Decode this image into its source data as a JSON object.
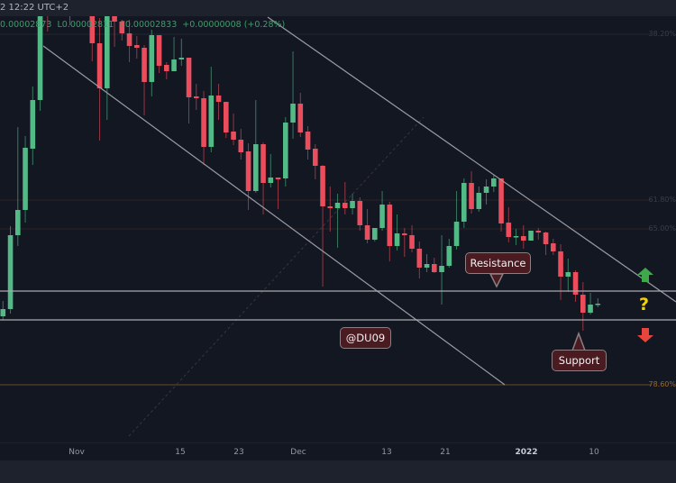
{
  "header": {
    "time": "2 12:22 UTC+2",
    "ohlc_text": "0.00002873  L0.00002811  C0.00002833  +0.00000008 (+0.28%)"
  },
  "colors": {
    "up": "#53b987",
    "down": "#eb4d5c",
    "background": "#131722",
    "line": "#9a9ca3",
    "fib_orange": "#9a6a2a"
  },
  "fib_levels": [
    {
      "label": "38.20%"
    },
    {
      "label": "61.80%"
    },
    {
      "label": "65.00%"
    },
    {
      "label": "78.60%"
    }
  ],
  "annotations": {
    "resistance": "Resistance",
    "support": "Support",
    "watermark": "@DU09",
    "up_icon": "arrow-up",
    "question_icon": "question-mark",
    "down_icon": "arrow-down"
  },
  "chart_data": {
    "type": "candlestick",
    "x_tick_labels": [
      "Nov",
      "15",
      "23",
      "Dec",
      "13",
      "21",
      "2022",
      "10"
    ],
    "ylim": [
      2.755e-05,
      2.99e-05
    ],
    "grid": false,
    "candles": [
      [
        2.8245e-05,
        2.833e-05,
        2.8225e-05,
        2.8285e-05
      ],
      [
        2.8285e-05,
        2.8745e-05,
        2.826e-05,
        2.8695e-05
      ],
      [
        2.8695e-05,
        2.9295e-05,
        2.8635e-05,
        2.8835e-05
      ],
      [
        2.8835e-05,
        2.9245e-05,
        2.8765e-05,
        2.918e-05
      ],
      [
        2.9175e-05,
        2.952e-05,
        2.9085e-05,
        2.9445e-05
      ],
      [
        2.9445e-05,
        3.01e-05,
        2.9385e-05,
        3.005e-05
      ],
      [
        3.005e-05,
        3.01e-05,
        2.9825e-05,
        2.995e-05
      ],
      [
        2.995e-05,
        3.015e-05,
        2.9925e-05,
        3.01e-05
      ],
      [
        3.01e-05,
        3.0125e-05,
        2.9975e-05,
        3e-05
      ],
      [
        3e-05,
        3.01e-05,
        2.986e-05,
        3.0075e-05
      ],
      [
        3.0075e-05,
        3.0125e-05,
        2.995e-05,
        2.9975e-05
      ],
      [
        2.9975e-05,
        3.0075e-05,
        2.994e-05,
        3.004e-05
      ],
      [
        3.004e-05,
        3.005e-05,
        2.966e-05,
        2.976e-05
      ],
      [
        2.976e-05,
        2.99e-05,
        2.922e-05,
        2.951e-05
      ],
      [
        2.951e-05,
        3e-05,
        2.9335e-05,
        2.995e-05
      ],
      [
        2.9925e-05,
        2.995e-05,
        2.974e-05,
        2.988e-05
      ],
      [
        2.988e-05,
        2.989e-05,
        2.9775e-05,
        2.9815e-05
      ],
      [
        2.9815e-05,
        2.989e-05,
        2.9655e-05,
        2.9745e-05
      ],
      [
        2.975e-05,
        2.98e-05,
        2.9675e-05,
        2.9735e-05
      ],
      [
        2.9735e-05,
        2.975e-05,
        2.936e-05,
        2.9545e-05
      ],
      [
        2.9545e-05,
        2.9835e-05,
        2.9465e-05,
        2.9805e-05
      ],
      [
        2.9805e-05,
        2.9805e-05,
        2.9595e-05,
        2.9635e-05
      ],
      [
        2.964e-05,
        2.9655e-05,
        2.956e-05,
        2.9605e-05
      ],
      [
        2.9605e-05,
        2.9795e-05,
        2.9605e-05,
        2.967e-05
      ],
      [
        2.967e-05,
        2.9785e-05,
        2.9635e-05,
        2.968e-05
      ],
      [
        2.968e-05,
        2.968e-05,
        2.9315e-05,
        2.946e-05
      ],
      [
        2.9465e-05,
        2.9535e-05,
        2.939e-05,
        2.9455e-05
      ],
      [
        2.9455e-05,
        2.9495e-05,
        2.9085e-05,
        2.9185e-05
      ],
      [
        2.9185e-05,
        2.963e-05,
        2.9155e-05,
        2.947e-05
      ],
      [
        2.947e-05,
        2.9535e-05,
        2.9335e-05,
        2.9435e-05
      ],
      [
        2.9435e-05,
        2.9435e-05,
        2.9235e-05,
        2.9265e-05
      ],
      [
        2.927e-05,
        2.937e-05,
        2.9195e-05,
        2.9225e-05
      ],
      [
        2.9225e-05,
        2.9285e-05,
        2.9115e-05,
        2.9155e-05
      ],
      [
        2.916e-05,
        2.9205e-05,
        2.8835e-05,
        2.894e-05
      ],
      [
        2.894e-05,
        2.9445e-05,
        2.893e-05,
        2.92e-05
      ],
      [
        2.92e-05,
        2.921e-05,
        2.881e-05,
        2.8985e-05
      ],
      [
        2.8985e-05,
        2.9145e-05,
        2.896e-05,
        2.9015e-05
      ],
      [
        2.9015e-05,
        2.9015e-05,
        2.884e-05,
        2.9005e-05
      ],
      [
        2.901e-05,
        2.935e-05,
        2.8965e-05,
        2.932e-05
      ],
      [
        2.932e-05,
        2.9715e-05,
        2.923e-05,
        2.9425e-05
      ],
      [
        2.9425e-05,
        2.9485e-05,
        2.924e-05,
        2.9265e-05
      ],
      [
        2.927e-05,
        2.93e-05,
        2.9115e-05,
        2.917e-05
      ],
      [
        2.9175e-05,
        2.92e-05,
        2.9005e-05,
        2.908e-05
      ],
      [
        2.908e-05,
        2.9085e-05,
        2.841e-05,
        2.8855e-05
      ],
      [
        2.8855e-05,
        2.8965e-05,
        2.8715e-05,
        2.8845e-05
      ],
      [
        2.8845e-05,
        2.8925e-05,
        2.8625e-05,
        2.8875e-05
      ],
      [
        2.8875e-05,
        2.899e-05,
        2.881e-05,
        2.8845e-05
      ],
      [
        2.8845e-05,
        2.8925e-05,
        2.881e-05,
        2.8885e-05
      ],
      [
        2.8885e-05,
        2.8905e-05,
        2.872e-05,
        2.875e-05
      ],
      [
        2.875e-05,
        2.884e-05,
        2.865e-05,
        2.867e-05
      ],
      [
        2.867e-05,
        2.8735e-05,
        2.866e-05,
        2.8735e-05
      ],
      [
        2.8735e-05,
        2.894e-05,
        2.872e-05,
        2.8865e-05
      ],
      [
        2.8865e-05,
        2.888e-05,
        2.855e-05,
        2.8635e-05
      ],
      [
        2.8635e-05,
        2.881e-05,
        2.861e-05,
        2.8705e-05
      ],
      [
        2.8705e-05,
        2.8735e-05,
        2.8575e-05,
        2.8695e-05
      ],
      [
        2.8695e-05,
        2.875e-05,
        2.86e-05,
        2.862e-05
      ],
      [
        2.862e-05,
        2.866e-05,
        2.8455e-05,
        2.8515e-05
      ],
      [
        2.8515e-05,
        2.859e-05,
        2.849e-05,
        2.8535e-05
      ],
      [
        2.8535e-05,
        2.857e-05,
        2.8485e-05,
        2.849e-05
      ],
      [
        2.849e-05,
        2.8695e-05,
        2.831e-05,
        2.8525e-05
      ],
      [
        2.8525e-05,
        2.8675e-05,
        2.8515e-05,
        2.8635e-05
      ],
      [
        2.8635e-05,
        2.894e-05,
        2.8615e-05,
        2.877e-05
      ],
      [
        2.877e-05,
        2.901e-05,
        2.8735e-05,
        2.8985e-05
      ],
      [
        2.8985e-05,
        2.905e-05,
        2.8815e-05,
        2.884e-05
      ],
      [
        2.884e-05,
        2.8965e-05,
        2.8825e-05,
        2.893e-05
      ],
      [
        2.893e-05,
        2.9005e-05,
        2.8865e-05,
        2.8965e-05
      ],
      [
        2.8965e-05,
        2.903e-05,
        2.8935e-05,
        2.901e-05
      ],
      [
        2.901e-05,
        2.901e-05,
        2.8715e-05,
        2.876e-05
      ],
      [
        2.8765e-05,
        2.885e-05,
        2.8655e-05,
        2.8685e-05
      ],
      [
        2.8685e-05,
        2.873e-05,
        2.864e-05,
        2.869e-05
      ],
      [
        2.869e-05,
        2.875e-05,
        2.862e-05,
        2.8665e-05
      ],
      [
        2.8665e-05,
        2.872e-05,
        2.8665e-05,
        2.872e-05
      ],
      [
        2.872e-05,
        2.8735e-05,
        2.867e-05,
        2.871e-05
      ],
      [
        2.871e-05,
        2.8715e-05,
        2.8585e-05,
        2.8645e-05
      ],
      [
        2.865e-05,
        2.8675e-05,
        2.8585e-05,
        2.8605e-05
      ],
      [
        2.8605e-05,
        2.8645e-05,
        2.8335e-05,
        2.8465e-05
      ],
      [
        2.8465e-05,
        2.8565e-05,
        2.838e-05,
        2.849e-05
      ],
      [
        2.849e-05,
        2.85e-05,
        2.8325e-05,
        2.8365e-05
      ],
      [
        2.8365e-05,
        2.8435e-05,
        2.8165e-05,
        2.8265e-05
      ],
      [
        2.8265e-05,
        2.8375e-05,
        2.8255e-05,
        2.831e-05
      ],
      [
        2.831e-05,
        2.8345e-05,
        2.8295e-05,
        2.8315e-05
      ]
    ]
  }
}
